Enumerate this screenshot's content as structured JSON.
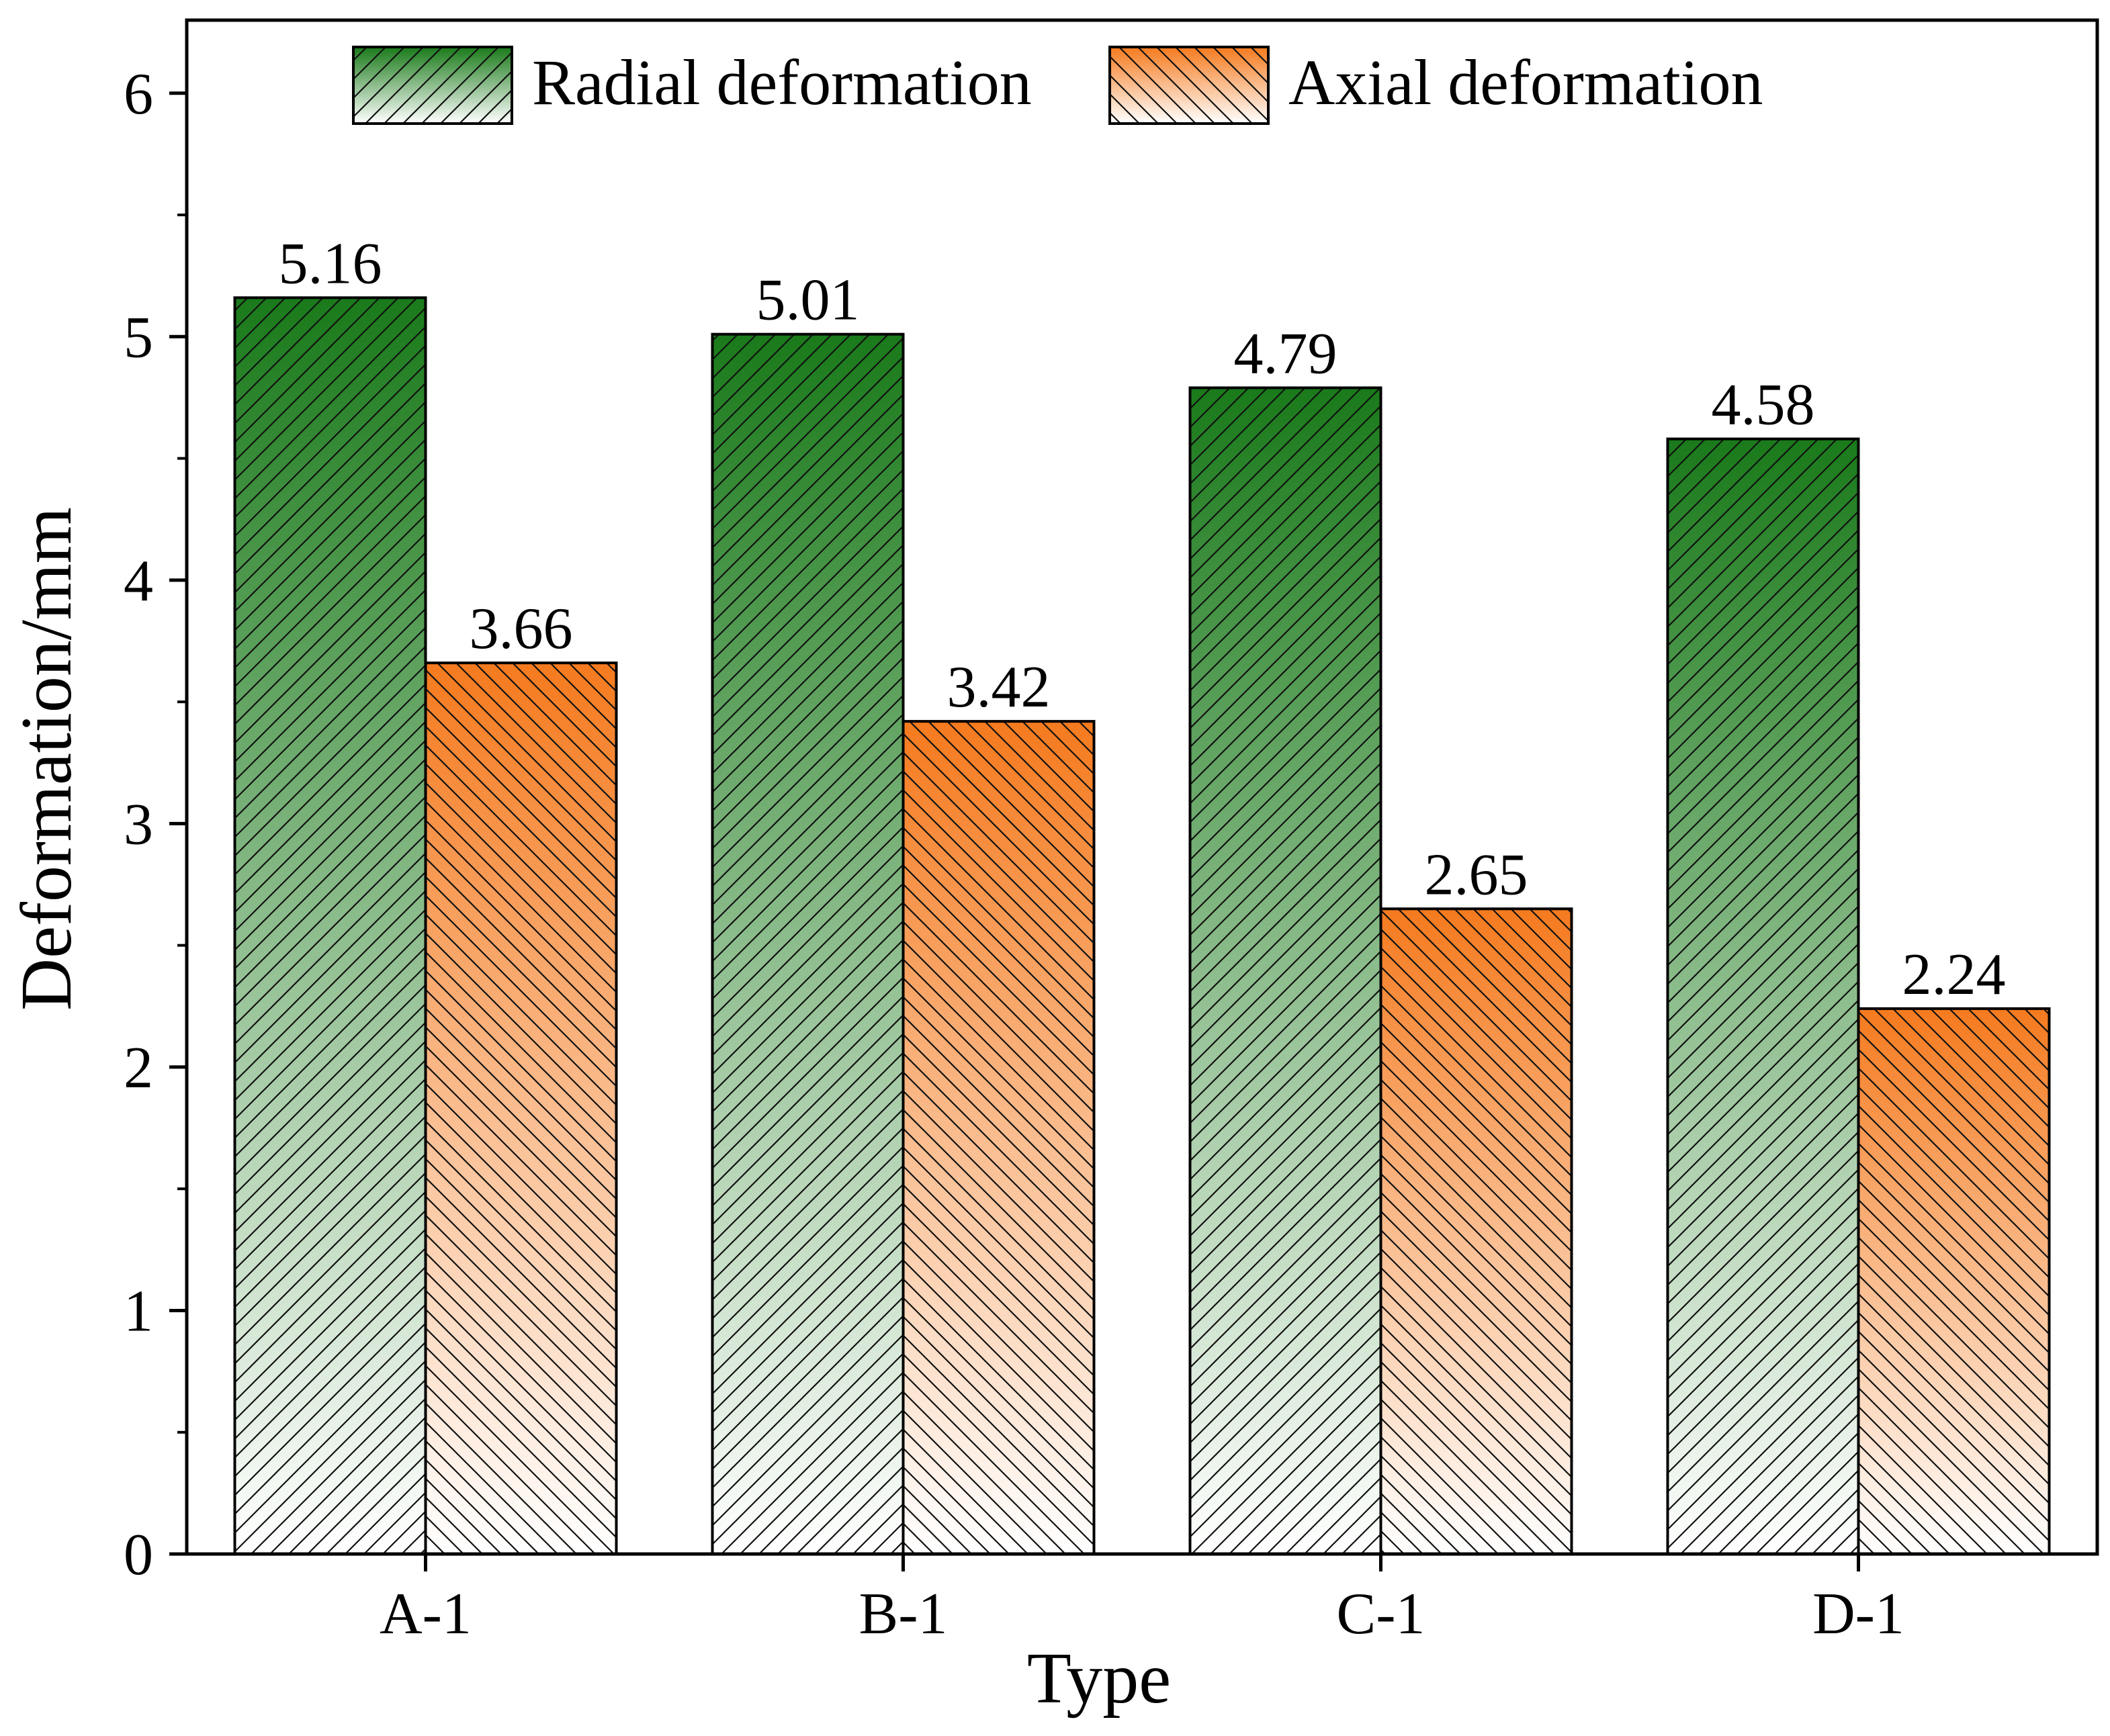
{
  "chart_data": {
    "type": "bar",
    "title": "",
    "xlabel": "Type",
    "ylabel": "Deformation/mm",
    "categories": [
      "A-1",
      "B-1",
      "C-1",
      "D-1"
    ],
    "series": [
      {
        "name": "Radial deformation",
        "values": [
          5.16,
          5.01,
          4.79,
          4.58
        ],
        "labels": [
          "5.16",
          "5.01",
          "4.79",
          "4.58"
        ],
        "color": "#1a7a1a",
        "hatch": "forward"
      },
      {
        "name": "Axial deformation",
        "values": [
          3.66,
          3.42,
          2.65,
          2.24
        ],
        "labels": [
          "3.66",
          "3.42",
          "2.65",
          "2.24"
        ],
        "color": "#f57a1e",
        "hatch": "backward"
      }
    ],
    "ylim": [
      0,
      6.3
    ],
    "yticks": [
      0,
      1,
      2,
      3,
      4,
      5,
      6
    ],
    "ytick_labels": [
      "0",
      "1",
      "2",
      "3",
      "4",
      "5",
      "6"
    ],
    "grid": false,
    "legend_position": "top-center"
  }
}
